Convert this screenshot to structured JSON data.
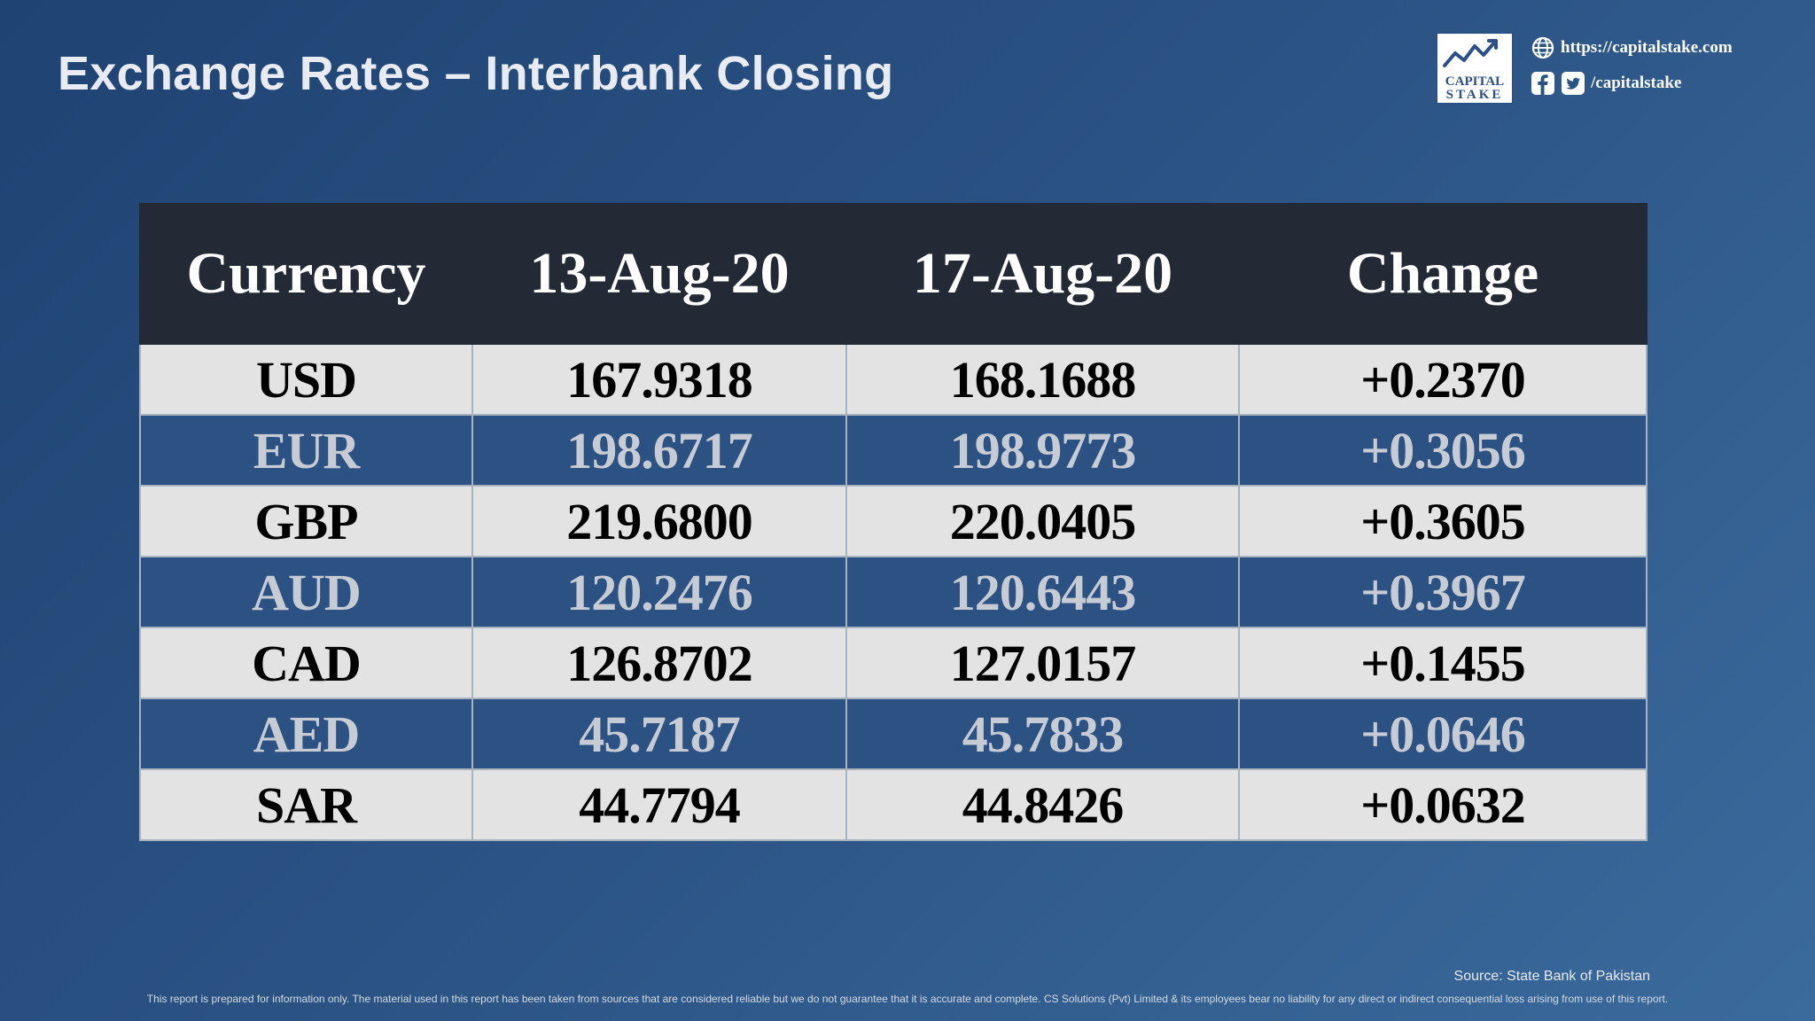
{
  "header": {
    "title": "Exchange Rates – Interbank Closing"
  },
  "brand": {
    "logo_line1": "CAPITAL",
    "logo_line2": "STAKE",
    "website": "https://capitalstake.com",
    "social_handle": "/capitalstake",
    "icons": [
      "globe-icon",
      "facebook-icon",
      "twitter-icon",
      "chart-logo-icon"
    ]
  },
  "table": {
    "headers": [
      "Currency",
      "13-Aug-20",
      "17-Aug-20",
      "Change"
    ],
    "rows": [
      {
        "currency": "USD",
        "d1": "167.9318",
        "d2": "168.1688",
        "change": "+0.2370"
      },
      {
        "currency": "EUR",
        "d1": "198.6717",
        "d2": "198.9773",
        "change": "+0.3056"
      },
      {
        "currency": "GBP",
        "d1": "219.6800",
        "d2": "220.0405",
        "change": "+0.3605"
      },
      {
        "currency": "AUD",
        "d1": "120.2476",
        "d2": "120.6443",
        "change": "+0.3967"
      },
      {
        "currency": "CAD",
        "d1": "126.8702",
        "d2": "127.0157",
        "change": "+0.1455"
      },
      {
        "currency": "AED",
        "d1": "45.7187",
        "d2": "45.7833",
        "change": "+0.0646"
      },
      {
        "currency": "SAR",
        "d1": "44.7794",
        "d2": "44.8426",
        "change": "+0.0632"
      }
    ]
  },
  "footer": {
    "source": "Source: State Bank of Pakistan",
    "disclaimer": "This report is prepared for information only. The material used in this report has been taken from sources that are considered reliable but we do not guarantee that it is accurate and complete. CS Solutions (Pvt) Limited & its employees bear no liability for any direct or indirect consequential loss arising from use of this report."
  },
  "colors": {
    "background_start": "#1f4373",
    "background_end": "#3b6a9c",
    "header_row": "#232a36",
    "light_row": "#e3e3e3",
    "dark_row": "#2c5183"
  }
}
